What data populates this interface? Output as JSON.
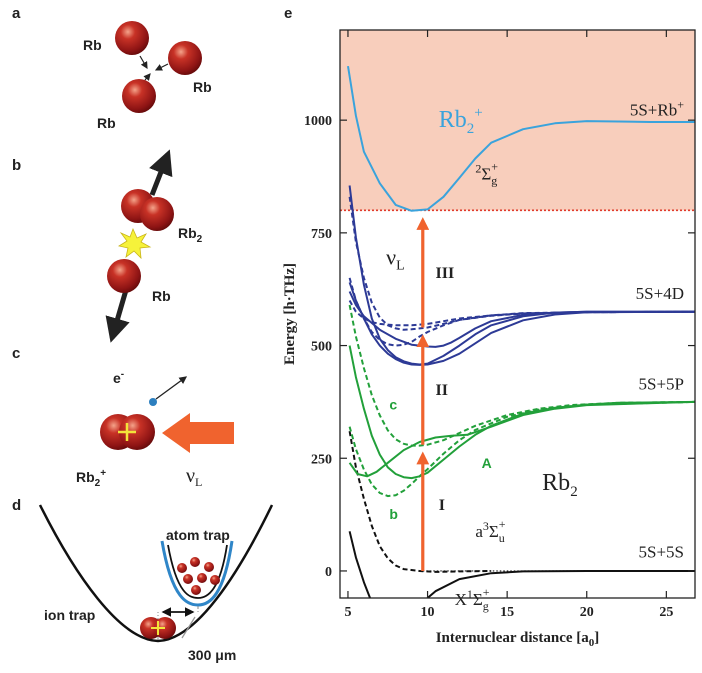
{
  "panels": {
    "a": {
      "letter": "a",
      "labels": [
        "Rb",
        "Rb",
        "Rb"
      ]
    },
    "b": {
      "letter": "b",
      "molecule": "Rb",
      "molecule_sub": "2",
      "atom": "Rb"
    },
    "c": {
      "letter": "c",
      "electron": "e",
      "electron_sup": "-",
      "ion": "Rb",
      "ion_sub": "2",
      "ion_sup": "+",
      "laser": "ν",
      "laser_sub": "L"
    },
    "d": {
      "letter": "d",
      "atom_trap": "atom trap",
      "ion_trap": "ion trap",
      "distance": "300 μm"
    },
    "e": {
      "letter": "e"
    }
  },
  "colors": {
    "atom": "#a81c1c",
    "ion_curve": "#3aa3dc",
    "blue_curve": "#2d3a96",
    "green_curve": "#22a03a",
    "laser": "#f0632e",
    "continuum": "#f7c5b0",
    "trap_blue": "#2f86c8"
  },
  "chart_data": {
    "type": "line",
    "xlabel": "Internuclear distance [a",
    "xlabel_sub": "0",
    "xlabel_end": "]",
    "ylabel": "Energy [h·THz]",
    "xlim": [
      4.5,
      26.8
    ],
    "ylim": [
      -60,
      1200
    ],
    "x_ticks": [
      5,
      10,
      15,
      20,
      25
    ],
    "y_ticks": [
      0,
      250,
      500,
      750,
      1000
    ],
    "x_tick_labels": [
      "5",
      "10",
      "15",
      "20",
      "25"
    ],
    "y_tick_labels": [
      "0",
      "250",
      "500",
      "750",
      "1000"
    ],
    "threshold": 800,
    "zero_line": 0,
    "asymptote_labels": [
      "5S+Rb",
      "5S+4D",
      "5S+5P",
      "5S+5S"
    ],
    "asymptote_sup_plus": "+",
    "molecule_labels": {
      "ion_main": "Rb",
      "ion_sub": "2",
      "ion_sup": "+",
      "neutral_main": "Rb",
      "neutral_sub": "2"
    },
    "state_labels": {
      "ion_term": "Σ",
      "ion_pre": "2",
      "ion_sub": "g",
      "ion_sup": "+",
      "triplet_pre": "a",
      "triplet_mult": "3",
      "triplet_term": "Σ",
      "triplet_sub": "u",
      "triplet_sup": "+",
      "singlet_pre": "X",
      "singlet_mult": "1",
      "singlet_term": "Σ",
      "singlet_sub": "g",
      "singlet_sup": "+"
    },
    "letters": [
      "A",
      "b",
      "c"
    ],
    "steps": [
      "I",
      "II",
      "III"
    ],
    "laser_label": "ν",
    "laser_sub": "L",
    "laser_x": 9.7,
    "laser_levels": [
      0,
      280,
      540,
      800
    ],
    "series": [
      {
        "name": "ion",
        "style": "solid",
        "color": "#3aa3dc",
        "points": [
          [
            5,
            1120
          ],
          [
            5.5,
            1010
          ],
          [
            6,
            930
          ],
          [
            7,
            860
          ],
          [
            8,
            812
          ],
          [
            9,
            799
          ],
          [
            10,
            802
          ],
          [
            11,
            830
          ],
          [
            12,
            872
          ],
          [
            13,
            915
          ],
          [
            14,
            950
          ],
          [
            16,
            980
          ],
          [
            18,
            993
          ],
          [
            20,
            998
          ],
          [
            22,
            997
          ],
          [
            24,
            996
          ],
          [
            26.8,
            996
          ]
        ]
      },
      {
        "name": "5S+5S singlet",
        "style": "solid",
        "color": "#111111",
        "points": [
          [
            5.1,
            88
          ],
          [
            5.5,
            30
          ],
          [
            6,
            -25
          ],
          [
            6.5,
            -70
          ],
          [
            7,
            -100
          ],
          [
            7.6,
            -113
          ],
          [
            8.5,
            -103
          ],
          [
            9.5,
            -75
          ],
          [
            10.5,
            -45
          ],
          [
            12,
            -18
          ],
          [
            14,
            -5
          ],
          [
            16,
            -1
          ],
          [
            20,
            0
          ],
          [
            26.8,
            0
          ]
        ]
      },
      {
        "name": "5S+5S triplet",
        "style": "dashed",
        "color": "#111111",
        "points": [
          [
            5.1,
            310
          ],
          [
            5.5,
            230
          ],
          [
            6,
            160
          ],
          [
            6.5,
            100
          ],
          [
            7,
            55
          ],
          [
            7.5,
            28
          ],
          [
            8,
            12
          ],
          [
            8.5,
            4
          ],
          [
            9.5,
            0
          ],
          [
            10.5,
            -2
          ],
          [
            12,
            -1
          ],
          [
            14,
            0
          ]
        ]
      },
      {
        "name": "5P solid upper",
        "style": "solid",
        "color": "#22a03a",
        "points": [
          [
            5.1,
            500
          ],
          [
            5.5,
            430
          ],
          [
            6,
            360
          ],
          [
            6.5,
            300
          ],
          [
            7,
            258
          ],
          [
            7.5,
            230
          ],
          [
            8,
            215
          ],
          [
            8.5,
            208
          ],
          [
            9,
            206
          ],
          [
            9.5,
            210
          ],
          [
            10,
            218
          ],
          [
            11,
            247
          ],
          [
            12,
            276
          ],
          [
            13,
            302
          ],
          [
            14,
            322
          ],
          [
            16,
            349
          ],
          [
            18,
            362
          ],
          [
            20,
            369
          ],
          [
            22,
            373
          ],
          [
            26.8,
            375
          ]
        ]
      },
      {
        "name": "5P dashed upper",
        "style": "dashed",
        "color": "#22a03a",
        "points": [
          [
            5.1,
            590
          ],
          [
            5.5,
            520
          ],
          [
            6,
            450
          ],
          [
            6.5,
            390
          ],
          [
            7,
            345
          ],
          [
            7.5,
            312
          ],
          [
            8,
            292
          ],
          [
            8.5,
            282
          ],
          [
            9,
            278
          ],
          [
            9.5,
            278
          ],
          [
            10,
            280
          ],
          [
            11,
            290
          ],
          [
            12,
            306
          ],
          [
            13,
            322
          ],
          [
            15,
            346
          ],
          [
            17,
            360
          ],
          [
            19,
            368
          ],
          [
            22,
            373
          ],
          [
            26.8,
            375
          ]
        ]
      },
      {
        "name": "5P dashed lower",
        "style": "dashed",
        "color": "#22a03a",
        "points": [
          [
            5.1,
            320
          ],
          [
            5.5,
            270
          ],
          [
            6,
            225
          ],
          [
            6.5,
            192
          ],
          [
            7,
            173
          ],
          [
            7.5,
            166
          ],
          [
            8,
            168
          ],
          [
            8.5,
            178
          ],
          [
            9,
            193
          ],
          [
            9.5,
            210
          ],
          [
            10,
            226
          ],
          [
            11,
            260
          ],
          [
            12,
            290
          ],
          [
            13,
            313
          ],
          [
            15,
            342
          ],
          [
            17,
            358
          ],
          [
            20,
            369
          ],
          [
            26.8,
            375
          ]
        ]
      },
      {
        "name": "5P solid lower A",
        "style": "solid",
        "color": "#22a03a",
        "points": [
          [
            5.1,
            240
          ],
          [
            5.6,
            215
          ],
          [
            6.2,
            210
          ],
          [
            6.8,
            220
          ],
          [
            7.5,
            240
          ],
          [
            8.5,
            268
          ],
          [
            9.5,
            286
          ],
          [
            10.5,
            296
          ],
          [
            11.5,
            300
          ],
          [
            12.5,
            302
          ],
          [
            14,
            320
          ],
          [
            16,
            346
          ],
          [
            18,
            360
          ],
          [
            20,
            368
          ],
          [
            26.8,
            375
          ]
        ]
      },
      {
        "name": "4D solid a",
        "style": "solid",
        "color": "#2d3a96",
        "points": [
          [
            5.1,
            855
          ],
          [
            5.5,
            740
          ],
          [
            6,
            635
          ],
          [
            6.5,
            560
          ],
          [
            7,
            515
          ],
          [
            7.5,
            490
          ],
          [
            8,
            474
          ],
          [
            8.5,
            465
          ],
          [
            9,
            460
          ],
          [
            9.5,
            458
          ],
          [
            10,
            460
          ],
          [
            11,
            477
          ],
          [
            12,
            500
          ],
          [
            13,
            525
          ],
          [
            14,
            545
          ],
          [
            16,
            565
          ],
          [
            18,
            573
          ],
          [
            20,
            575
          ],
          [
            26.8,
            575
          ]
        ]
      },
      {
        "name": "4D solid b",
        "style": "solid",
        "color": "#2d3a96",
        "points": [
          [
            5.1,
            640
          ],
          [
            5.5,
            600
          ],
          [
            6,
            560
          ],
          [
            6.5,
            525
          ],
          [
            7,
            500
          ],
          [
            7.5,
            482
          ],
          [
            8,
            470
          ],
          [
            8.5,
            462
          ],
          [
            9,
            458
          ],
          [
            9.5,
            457
          ],
          [
            10,
            458
          ],
          [
            11,
            466
          ],
          [
            12,
            482
          ],
          [
            13,
            505
          ],
          [
            14,
            528
          ],
          [
            16,
            556
          ],
          [
            18,
            569
          ],
          [
            20,
            574
          ],
          [
            26.8,
            575
          ]
        ]
      },
      {
        "name": "4D solid c",
        "style": "solid",
        "color": "#2d3a96",
        "points": [
          [
            5.1,
            620
          ],
          [
            5.5,
            590
          ],
          [
            6,
            565
          ],
          [
            7,
            535
          ],
          [
            8,
            515
          ],
          [
            9,
            502
          ],
          [
            10,
            498
          ],
          [
            10.5,
            497
          ],
          [
            11,
            500
          ],
          [
            11.5,
            507
          ],
          [
            12,
            517
          ],
          [
            13,
            538
          ],
          [
            14,
            554
          ],
          [
            16,
            568
          ],
          [
            18,
            573
          ],
          [
            20,
            575
          ],
          [
            26.8,
            575
          ]
        ]
      },
      {
        "name": "4D dashed a",
        "style": "dashed",
        "color": "#2d3a96",
        "points": [
          [
            5.1,
            830
          ],
          [
            5.5,
            730
          ],
          [
            6,
            650
          ],
          [
            6.5,
            595
          ],
          [
            7,
            562
          ],
          [
            7.5,
            545
          ],
          [
            8,
            538
          ],
          [
            8.5,
            535
          ],
          [
            9,
            536
          ],
          [
            9.5,
            538
          ],
          [
            10,
            540
          ],
          [
            11,
            548
          ],
          [
            12,
            557
          ],
          [
            14,
            566
          ],
          [
            16,
            571
          ],
          [
            20,
            574
          ],
          [
            26.8,
            575
          ]
        ]
      },
      {
        "name": "4D dashed b",
        "style": "dashed",
        "color": "#2d3a96",
        "points": [
          [
            5.1,
            650
          ],
          [
            5.5,
            600
          ],
          [
            6,
            560
          ],
          [
            6.5,
            530
          ],
          [
            7,
            512
          ],
          [
            7.5,
            503
          ],
          [
            8,
            500
          ],
          [
            8.5,
            502
          ],
          [
            9,
            508
          ],
          [
            9.5,
            520
          ],
          [
            10,
            530
          ],
          [
            11,
            545
          ],
          [
            12,
            557
          ],
          [
            14,
            567
          ],
          [
            16,
            572
          ],
          [
            20,
            574
          ],
          [
            26.8,
            575
          ]
        ]
      },
      {
        "name": "4D dashed c",
        "style": "dashed",
        "color": "#2d3a96",
        "points": [
          [
            5.1,
            600
          ],
          [
            5.5,
            575
          ],
          [
            6,
            560
          ],
          [
            6.5,
            552
          ],
          [
            7,
            548
          ],
          [
            8,
            545
          ],
          [
            9,
            545
          ],
          [
            10,
            548
          ],
          [
            11,
            554
          ],
          [
            12,
            560
          ],
          [
            14,
            567
          ],
          [
            16,
            571
          ],
          [
            20,
            574
          ],
          [
            26.8,
            575
          ]
        ]
      }
    ]
  }
}
